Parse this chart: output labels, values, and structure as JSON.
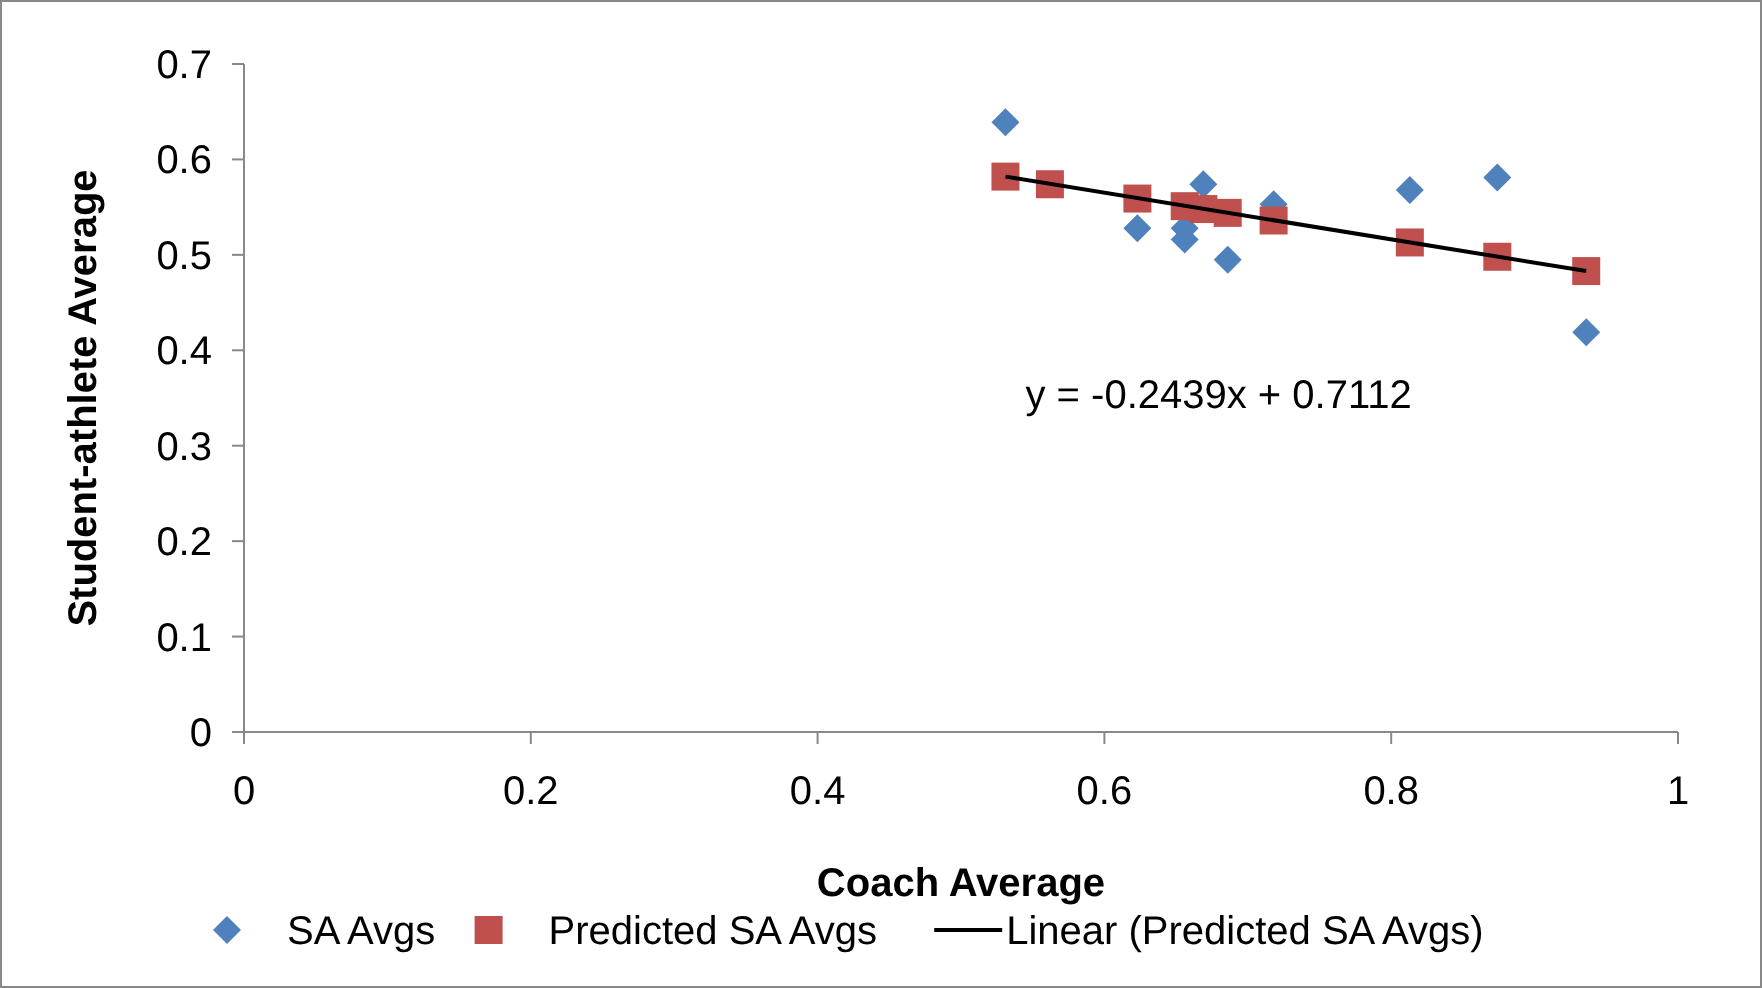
{
  "chart_data": {
    "type": "scatter",
    "xlabel": "Coach Average",
    "ylabel": "Student-athlete Average",
    "xlim": [
      0,
      1
    ],
    "xticks": [
      0,
      0.2,
      0.4,
      0.6,
      0.8,
      1
    ],
    "ylim": [
      0,
      0.7
    ],
    "yticks": [
      0,
      0.1,
      0.2,
      0.3,
      0.4,
      0.5,
      0.6,
      0.7
    ],
    "grid": false,
    "legend": "bottom",
    "annotations": [
      "y = -0.2439x + 0.7112"
    ],
    "series": [
      {
        "name": "SA Avgs",
        "marker": "diamond",
        "color": "#4f81bd",
        "x": [
          0.531,
          0.562,
          0.623,
          0.656,
          0.656,
          0.669,
          0.686,
          0.718,
          0.813,
          0.874,
          0.936
        ],
        "values": [
          0.639,
          null,
          0.528,
          0.528,
          0.516,
          0.574,
          0.495,
          0.553,
          0.568,
          0.581,
          0.419
        ]
      },
      {
        "name": "Predicted SA Avgs",
        "marker": "square",
        "color": "#c0504d",
        "x": [
          0.531,
          0.562,
          0.623,
          0.656,
          0.669,
          0.686,
          0.718,
          0.813,
          0.874,
          0.936
        ],
        "values": [
          0.582,
          0.574,
          0.559,
          0.551,
          0.548,
          0.544,
          0.536,
          0.513,
          0.498,
          0.483
        ]
      },
      {
        "name": "Linear (Predicted SA Avgs)",
        "type": "line",
        "marker": "none",
        "line_style": "solid",
        "color": "#000000",
        "x": [
          0.531,
          0.936
        ],
        "values": [
          0.582,
          0.483
        ]
      }
    ]
  }
}
